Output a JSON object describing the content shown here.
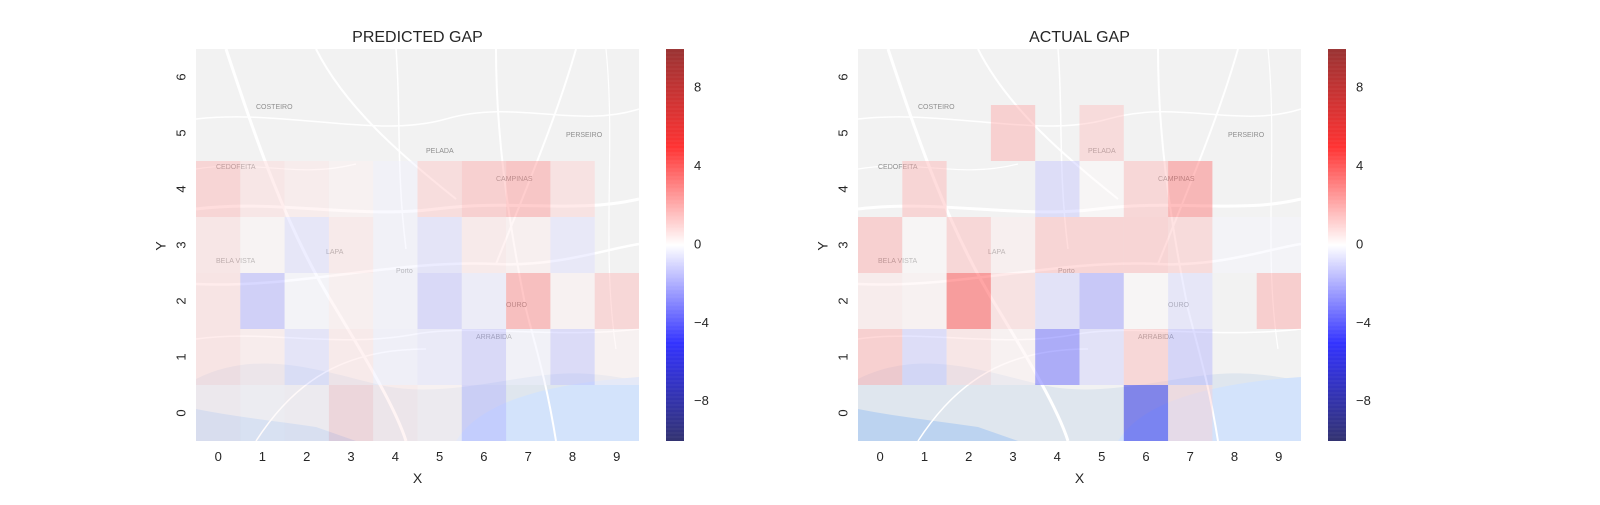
{
  "chart_data": [
    {
      "type": "heatmap",
      "title": "PREDICTED GAP",
      "xlabel": "X",
      "ylabel": "Y",
      "x": [
        "0",
        "1",
        "2",
        "3",
        "4",
        "5",
        "6",
        "7",
        "8",
        "9"
      ],
      "y": [
        "0",
        "1",
        "2",
        "3",
        "4",
        "5",
        "6"
      ],
      "cells": [
        {
          "x": 0,
          "y": 4,
          "v": 1.6
        },
        {
          "x": 1,
          "y": 4,
          "v": 0.8
        },
        {
          "x": 2,
          "y": 4,
          "v": 0.5
        },
        {
          "x": 3,
          "y": 4,
          "v": 0.3
        },
        {
          "x": 4,
          "y": 4,
          "v": -0.3
        },
        {
          "x": 5,
          "y": 4,
          "v": 1.2
        },
        {
          "x": 6,
          "y": 4,
          "v": 1.8
        },
        {
          "x": 7,
          "y": 4,
          "v": 2.3
        },
        {
          "x": 8,
          "y": 4,
          "v": 1.0
        },
        {
          "x": 0,
          "y": 3,
          "v": 0.8
        },
        {
          "x": 1,
          "y": 3,
          "v": 0.2
        },
        {
          "x": 2,
          "y": 3,
          "v": -0.8
        },
        {
          "x": 3,
          "y": 3,
          "v": 0.6
        },
        {
          "x": 4,
          "y": 3,
          "v": -0.3
        },
        {
          "x": 5,
          "y": 3,
          "v": -0.9
        },
        {
          "x": 6,
          "y": 3,
          "v": 0.6
        },
        {
          "x": 7,
          "y": 3,
          "v": 0.4
        },
        {
          "x": 8,
          "y": 3,
          "v": -0.7
        },
        {
          "x": 0,
          "y": 2,
          "v": 0.9
        },
        {
          "x": 1,
          "y": 2,
          "v": -1.8
        },
        {
          "x": 2,
          "y": 2,
          "v": -0.2
        },
        {
          "x": 3,
          "y": 2,
          "v": 0.4
        },
        {
          "x": 4,
          "y": 2,
          "v": -0.3
        },
        {
          "x": 5,
          "y": 2,
          "v": -1.4
        },
        {
          "x": 6,
          "y": 2,
          "v": -0.5
        },
        {
          "x": 7,
          "y": 2,
          "v": 2.6
        },
        {
          "x": 8,
          "y": 2,
          "v": 0.3
        },
        {
          "x": 9,
          "y": 2,
          "v": 1.5
        },
        {
          "x": 0,
          "y": 1,
          "v": 0.9
        },
        {
          "x": 1,
          "y": 1,
          "v": 0.5
        },
        {
          "x": 2,
          "y": 1,
          "v": -0.9
        },
        {
          "x": 3,
          "y": 1,
          "v": 0.6
        },
        {
          "x": 4,
          "y": 1,
          "v": -0.4
        },
        {
          "x": 5,
          "y": 1,
          "v": -0.6
        },
        {
          "x": 6,
          "y": 1,
          "v": -1.4
        },
        {
          "x": 7,
          "y": 1,
          "v": -0.3
        },
        {
          "x": 8,
          "y": 1,
          "v": -1.3
        },
        {
          "x": 9,
          "y": 1,
          "v": 0.3
        },
        {
          "x": 0,
          "y": 0,
          "v": 0.4
        },
        {
          "x": 1,
          "y": 0,
          "v": 0.2
        },
        {
          "x": 2,
          "y": 0,
          "v": 0.3
        },
        {
          "x": 3,
          "y": 0,
          "v": 1.2
        },
        {
          "x": 4,
          "y": 0,
          "v": 0.5
        },
        {
          "x": 5,
          "y": 0,
          "v": 0.3
        },
        {
          "x": 6,
          "y": 0,
          "v": -1.6
        }
      ],
      "colorbar": {
        "min": -10,
        "max": 10,
        "ticks": [
          -8,
          -4,
          0,
          4,
          8
        ],
        "colormap": "seismic"
      }
    },
    {
      "type": "heatmap",
      "title": "ACTUAL GAP",
      "xlabel": "X",
      "ylabel": "Y",
      "x": [
        "0",
        "1",
        "2",
        "3",
        "4",
        "5",
        "6",
        "7",
        "8",
        "9"
      ],
      "y": [
        "0",
        "1",
        "2",
        "3",
        "4",
        "5",
        "6"
      ],
      "cells": [
        {
          "x": 3,
          "y": 5,
          "v": 1.8
        },
        {
          "x": 5,
          "y": 5,
          "v": 1.3
        },
        {
          "x": 1,
          "y": 4,
          "v": 1.6
        },
        {
          "x": 4,
          "y": 4,
          "v": -1.2
        },
        {
          "x": 5,
          "y": 4,
          "v": 0.1
        },
        {
          "x": 6,
          "y": 4,
          "v": 1.5
        },
        {
          "x": 7,
          "y": 4,
          "v": 3.0
        },
        {
          "x": 0,
          "y": 3,
          "v": 1.8
        },
        {
          "x": 1,
          "y": 3,
          "v": 0.1
        },
        {
          "x": 2,
          "y": 3,
          "v": 1.5
        },
        {
          "x": 3,
          "y": 3,
          "v": 0.4
        },
        {
          "x": 4,
          "y": 3,
          "v": 1.6
        },
        {
          "x": 5,
          "y": 3,
          "v": 1.6
        },
        {
          "x": 6,
          "y": 3,
          "v": 1.6
        },
        {
          "x": 7,
          "y": 3,
          "v": 1.3
        },
        {
          "x": 8,
          "y": 3,
          "v": -0.2
        },
        {
          "x": 9,
          "y": 3,
          "v": -0.2
        },
        {
          "x": 0,
          "y": 2,
          "v": 0.5
        },
        {
          "x": 1,
          "y": 2,
          "v": 0.3
        },
        {
          "x": 2,
          "y": 2,
          "v": 4.2
        },
        {
          "x": 3,
          "y": 2,
          "v": 1.0
        },
        {
          "x": 4,
          "y": 2,
          "v": -1.0
        },
        {
          "x": 5,
          "y": 2,
          "v": -2.2
        },
        {
          "x": 6,
          "y": 2,
          "v": 0.1
        },
        {
          "x": 7,
          "y": 2,
          "v": -0.8
        },
        {
          "x": 9,
          "y": 2,
          "v": 1.9
        },
        {
          "x": 0,
          "y": 1,
          "v": 1.8
        },
        {
          "x": 1,
          "y": 1,
          "v": -1.2
        },
        {
          "x": 2,
          "y": 1,
          "v": 0.8
        },
        {
          "x": 3,
          "y": 1,
          "v": 0.3
        },
        {
          "x": 4,
          "y": 1,
          "v": -3.5
        },
        {
          "x": 5,
          "y": 1,
          "v": -1.0
        },
        {
          "x": 6,
          "y": 1,
          "v": 1.5
        },
        {
          "x": 7,
          "y": 1,
          "v": -1.6
        },
        {
          "x": 6,
          "y": 0,
          "v": -5.8
        },
        {
          "x": 7,
          "y": 0,
          "v": 1.0
        }
      ],
      "colorbar": {
        "min": -10,
        "max": 10,
        "ticks": [
          -8,
          -4,
          0,
          4,
          8
        ],
        "colormap": "seismic"
      }
    }
  ]
}
